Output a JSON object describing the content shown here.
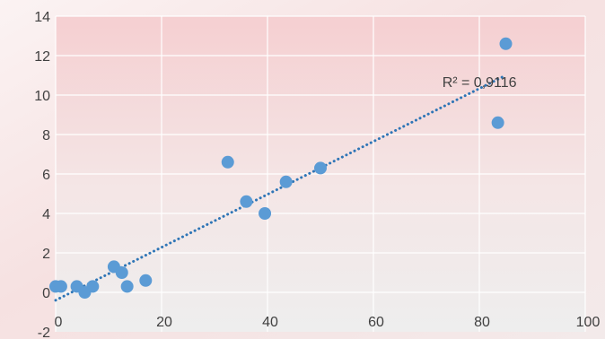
{
  "chart_data": {
    "type": "scatter",
    "title": "",
    "xlabel": "",
    "ylabel": "",
    "xlim": [
      0,
      100
    ],
    "ylim": [
      -2,
      14
    ],
    "x_ticks": [
      0,
      20,
      40,
      60,
      80,
      100
    ],
    "y_ticks": [
      -2,
      0,
      2,
      4,
      6,
      8,
      10,
      12,
      14
    ],
    "grid": true,
    "legend": "none",
    "series": [
      {
        "marker_color": "#5b9bd5",
        "points": [
          {
            "x": 0,
            "y": 0.3
          },
          {
            "x": 1,
            "y": 0.3
          },
          {
            "x": 4,
            "y": 0.3
          },
          {
            "x": 5.5,
            "y": 0.0
          },
          {
            "x": 7,
            "y": 0.3
          },
          {
            "x": 11,
            "y": 1.3
          },
          {
            "x": 12.5,
            "y": 1.0
          },
          {
            "x": 13.5,
            "y": 0.3
          },
          {
            "x": 17,
            "y": 0.6
          },
          {
            "x": 32.5,
            "y": 6.6
          },
          {
            "x": 36,
            "y": 4.6
          },
          {
            "x": 39.5,
            "y": 4.0
          },
          {
            "x": 43.5,
            "y": 5.6
          },
          {
            "x": 50,
            "y": 6.3
          },
          {
            "x": 83.5,
            "y": 8.6
          },
          {
            "x": 85,
            "y": 12.6
          }
        ]
      }
    ],
    "trendline": {
      "type": "linear",
      "x_range": [
        0,
        85
      ],
      "y_start": -0.4,
      "y_end": 11.0,
      "color": "#2e75b6",
      "style": "dotted"
    },
    "annotation": "R² = 0,9116"
  }
}
